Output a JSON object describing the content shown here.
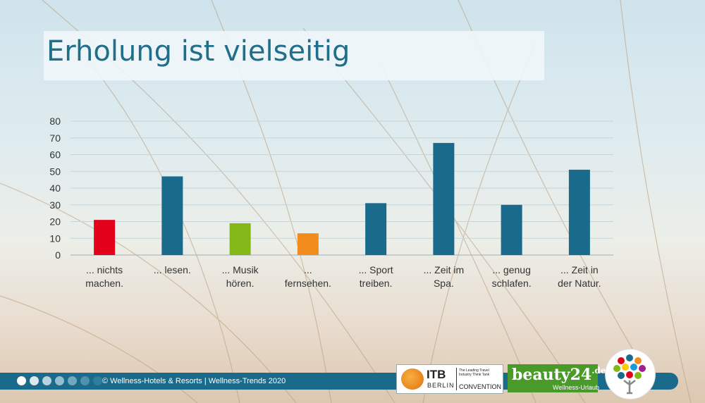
{
  "slide": {
    "title": "Erholung ist vielseitig"
  },
  "chart_data": {
    "type": "bar",
    "categories": [
      [
        "... nichts",
        "machen."
      ],
      [
        "... lesen."
      ],
      [
        "... Musik",
        "hören."
      ],
      [
        "...",
        "fernsehen."
      ],
      [
        "... Sport",
        "treiben."
      ],
      [
        "... Zeit im",
        "Spa."
      ],
      [
        "... genug",
        "schlafen."
      ],
      [
        "... Zeit in",
        "der Natur."
      ]
    ],
    "values": [
      21,
      47,
      19,
      13,
      31,
      67,
      30,
      51
    ],
    "colors": [
      "#e2001a",
      "#1a6a8c",
      "#84b818",
      "#f28c1c",
      "#1a6a8c",
      "#1a6a8c",
      "#1a6a8c",
      "#1a6a8c"
    ],
    "ylim": [
      0,
      80
    ],
    "yticks": [
      0,
      10,
      20,
      30,
      40,
      50,
      60,
      70,
      80
    ],
    "grid": true,
    "title": "",
    "xlabel": "",
    "ylabel": ""
  },
  "footer": {
    "copyright": "© Wellness-Hotels & Resorts | Wellness-Trends 2020",
    "dot_colors": [
      "#ffffff",
      "#dce8ee",
      "#b9d3de",
      "#95bdcd",
      "#72a8bd",
      "#4f92ac",
      "#2d7d9b"
    ]
  },
  "logos": {
    "itb": {
      "name": "ITB",
      "city": "BERLIN",
      "tagline": "The Leading Travel Industry Think Tank",
      "convention": "CONVENTION"
    },
    "beauty24": {
      "name": "beauty24",
      "tld": ".de",
      "subtitle": "Wellness-Urlaub"
    },
    "wellness_hotels": {
      "mark": "tree-logo"
    }
  }
}
